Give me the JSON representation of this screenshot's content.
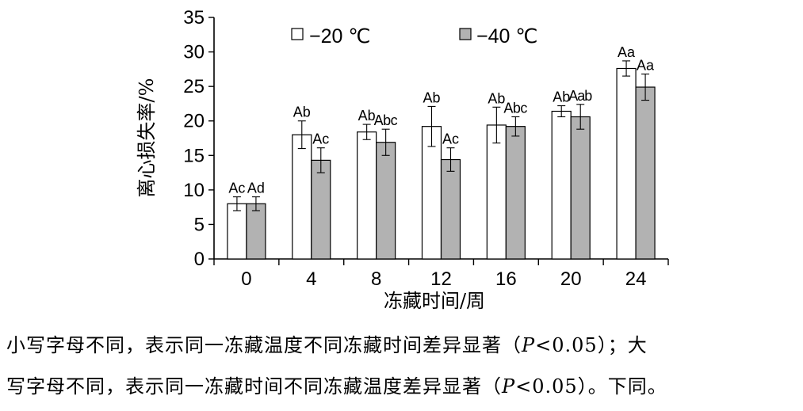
{
  "chart_data": {
    "type": "bar",
    "categories": [
      "0",
      "4",
      "8",
      "12",
      "16",
      "20",
      "24"
    ],
    "series": [
      {
        "name": "−20 ℃",
        "values": [
          8.0,
          18.0,
          18.4,
          19.2,
          19.4,
          21.4,
          27.6
        ],
        "errors": [
          1.0,
          2.0,
          1.1,
          2.9,
          2.6,
          0.8,
          1.1
        ],
        "letters": [
          "Ac",
          "Ab",
          "Ab",
          "Ab",
          "Ab",
          "Ab",
          "Aa"
        ],
        "color": "#ffffff"
      },
      {
        "name": "−40 ℃",
        "values": [
          8.0,
          14.3,
          16.9,
          14.4,
          19.2,
          20.6,
          24.9
        ],
        "errors": [
          1.0,
          1.8,
          1.9,
          1.7,
          1.4,
          1.8,
          1.9
        ],
        "letters": [
          "Ad",
          "Ac",
          "Abc",
          "Ac",
          "Abc",
          "Aab",
          "Aa"
        ],
        "color": "#b2b2b2"
      }
    ],
    "xlabel": "冻藏时间/周",
    "ylabel": "离心损失率/%",
    "ylim": [
      0,
      35
    ],
    "yticks": [
      "0",
      "5",
      "10",
      "15",
      "20",
      "25",
      "30",
      "35"
    ],
    "grid": false,
    "legend_position": "top"
  },
  "notes": {
    "line1": "小写字母不同，表示同一冻藏温度不同冻藏时间差异显著（P<0.05）；大",
    "line2": "写字母不同，表示同一冻藏时间不同冻藏温度差异显著（P<0.05）。下同。"
  }
}
